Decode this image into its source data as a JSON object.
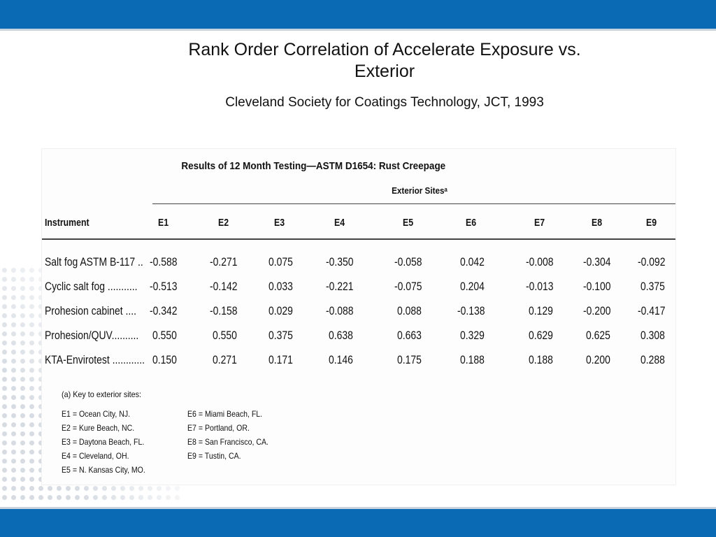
{
  "slide": {
    "title_line1": "Rank Order Correlation of Accelerate Exposure  vs.",
    "title_line2": "Exterior",
    "subtitle": "Cleveland Society for Coatings Technology, JCT, 1993",
    "colors": {
      "bar": "#0a6ab4"
    }
  },
  "table": {
    "caption": "Results of 12 Month Testing—ASTM D1654: Rust Creepage",
    "group_header": "Exterior Sitesᵃ",
    "instrument_header": "Instrument",
    "columns": [
      "E1",
      "E2",
      "E3",
      "E4",
      "E5",
      "E6",
      "E7",
      "E8",
      "E9"
    ],
    "rows": [
      {
        "label": "Salt fog ASTM B-117 ..",
        "values": [
          "-0.588",
          "-0.271",
          "0.075",
          "-0.350",
          "-0.058",
          "0.042",
          "-0.008",
          "-0.304",
          "-0.092"
        ]
      },
      {
        "label": "Cyclic salt fog ...........",
        "values": [
          "-0.513",
          "-0.142",
          "0.033",
          "-0.221",
          "-0.075",
          "0.204",
          "-0.013",
          "-0.100",
          "0.375"
        ]
      },
      {
        "label": "Prohesion cabinet ....",
        "values": [
          "-0.342",
          "-0.158",
          "0.029",
          "-0.088",
          "0.088",
          "-0.138",
          "0.129",
          "-0.200",
          "-0.417"
        ]
      },
      {
        "label": "Prohesion/QUV..........",
        "values": [
          "0.550",
          "0.550",
          "0.375",
          "0.638",
          "0.663",
          "0.329",
          "0.629",
          "0.625",
          "0.308"
        ]
      },
      {
        "label": "KTA-Envirotest ............",
        "values": [
          "0.150",
          "0.271",
          "0.171",
          "0.146",
          "0.175",
          "0.188",
          "0.188",
          "0.200",
          "0.288"
        ]
      }
    ],
    "key_title": "(a)  Key to exterior sites:",
    "key_left": [
      "E1 = Ocean City, NJ.",
      "E2 = Kure Beach, NC.",
      "E3 = Daytona Beach, FL.",
      "E4 = Cleveland, OH.",
      "E5 = N. Kansas City, MO."
    ],
    "key_right": [
      "E6 = Miami Beach, FL.",
      "E7 = Portland, OR.",
      "E8 = San Francisco, CA.",
      "E9 = Tustin, CA."
    ]
  }
}
